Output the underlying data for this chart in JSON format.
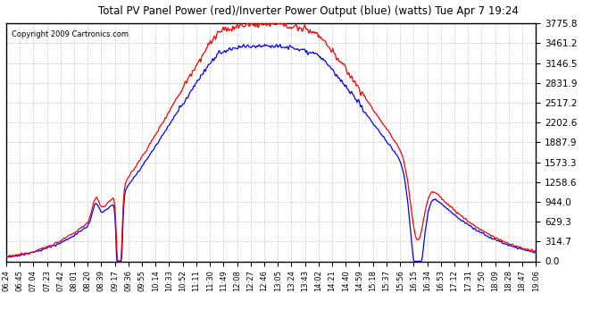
{
  "title": "Total PV Panel Power (red)/Inverter Power Output (blue) (watts) Tue Apr 7 19:24",
  "copyright": "Copyright 2009 Cartronics.com",
  "yticks": [
    0.0,
    314.7,
    629.3,
    944.0,
    1258.6,
    1573.3,
    1887.9,
    2202.6,
    2517.2,
    2831.9,
    3146.5,
    3461.2,
    3775.8
  ],
  "ymax": 3775.8,
  "ymin": 0.0,
  "bg_color": "#ffffff",
  "plot_bg_color": "#ffffff",
  "grid_color": "#bbbbbb",
  "title_color": "#000000",
  "red_color": "#ff0000",
  "blue_color": "#0000ff",
  "n_points": 780,
  "peak_pv": 3750.0,
  "peak_inv": 3430.0
}
